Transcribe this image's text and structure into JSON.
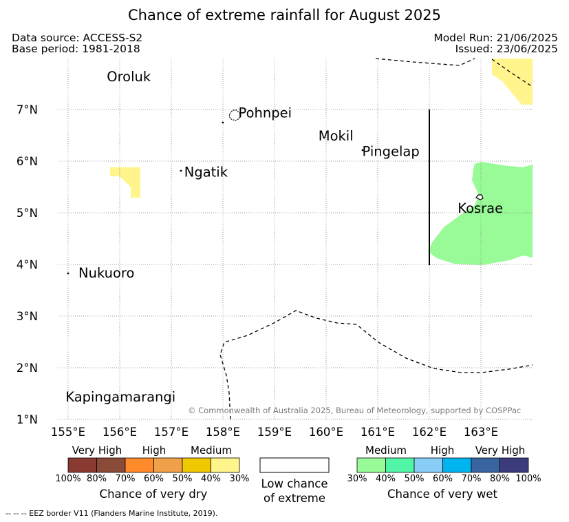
{
  "title": "Chance of extreme rainfall for August 2025",
  "data_source": "Data source: ACCESS-S2",
  "base_period": "Base period: 1981-2018",
  "model_run": "Model Run: 21/06/2025",
  "issued": "Issued: 23/06/2025",
  "copyright": "© Commonwealth of Australia 2025, Bureau of Meteorology, supported by COSPPac",
  "eez_note": "--  --  -- EEZ border V11 (Flanders Marine Institute, 2019).",
  "lon_ticks": [
    "155°E",
    "156°E",
    "157°E",
    "158°E",
    "159°E",
    "160°E",
    "161°E",
    "162°E",
    "163°E"
  ],
  "lat_ticks": [
    "1°N",
    "2°N",
    "3°N",
    "4°N",
    "5°N",
    "6°N",
    "7°N"
  ],
  "places": [
    {
      "name": "Oroluk",
      "lon": 155.75,
      "lat": 7.55
    },
    {
      "name": "Pohnpei",
      "lon": 158.3,
      "lat": 6.85
    },
    {
      "name": "Mokil",
      "lon": 159.85,
      "lat": 6.4
    },
    {
      "name": "Pingelap",
      "lon": 160.7,
      "lat": 6.1
    },
    {
      "name": "Ngatik",
      "lon": 157.25,
      "lat": 5.7
    },
    {
      "name": "Kosrae",
      "lon": 162.55,
      "lat": 5.0
    },
    {
      "name": "Nukuoro",
      "lon": 155.2,
      "lat": 3.75
    },
    {
      "name": "Kapingamarangi",
      "lon": 154.95,
      "lat": 1.35
    }
  ],
  "legend": {
    "dry": {
      "title": "Chance of very dry",
      "labels": [
        "Very High",
        "High",
        "Medium"
      ],
      "ticks": [
        "100%",
        "80%",
        "70%",
        "60%",
        "50%",
        "40%",
        "30%"
      ],
      "colors": [
        "#8B3A32",
        "#8A4A38",
        "#FF8A2A",
        "#F0A048",
        "#F0C800",
        "#FFF58C"
      ]
    },
    "low": {
      "title_line1": "Low chance",
      "title_line2": "of extreme"
    },
    "wet": {
      "title": "Chance of very wet",
      "labels": [
        "Medium",
        "High",
        "Very High"
      ],
      "ticks": [
        "30%",
        "40%",
        "50%",
        "60%",
        "70%",
        "80%",
        "100%"
      ],
      "colors": [
        "#98FB98",
        "#50F5A5",
        "#87CDF5",
        "#00B4F0",
        "#3A64A0",
        "#3C3C7C"
      ]
    }
  },
  "colors": {
    "very_dry_medium": "#FFF58C",
    "very_wet_medium": "#98FB98"
  }
}
